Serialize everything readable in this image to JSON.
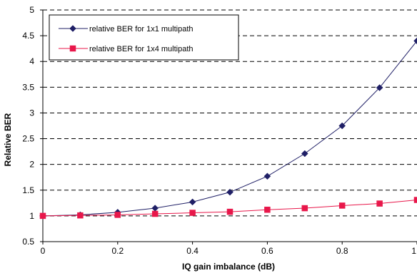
{
  "chart_data": {
    "type": "line",
    "title": "",
    "xlabel": "IQ gain imbalance (dB)",
    "ylabel": "Relative BER",
    "xlim": [
      0,
      1
    ],
    "ylim": [
      0.5,
      5
    ],
    "xticks": [
      0,
      0.2,
      0.4,
      0.6,
      0.8,
      1
    ],
    "xtick_labels": [
      "0",
      "0.2",
      "0.4",
      "0.6",
      "0.8",
      "1"
    ],
    "yticks": [
      0.5,
      1,
      1.5,
      2,
      2.5,
      3,
      3.5,
      4,
      4.5,
      5
    ],
    "ytick_labels": [
      "0.5",
      "1",
      "1.5",
      "2",
      "2.5",
      "3",
      "3.5",
      "4",
      "4.5",
      "5"
    ],
    "grid": "horizontal dashed",
    "legend_position": "top-left",
    "x": [
      0,
      0.1,
      0.2,
      0.3,
      0.4,
      0.5,
      0.6,
      0.7,
      0.8,
      0.9,
      1.0
    ],
    "series": [
      {
        "name": "relative BER for 1x1 multipath",
        "color": "#1f1f66",
        "marker": "diamond",
        "values": [
          1.0,
          1.02,
          1.07,
          1.15,
          1.27,
          1.46,
          1.77,
          2.21,
          2.75,
          3.49,
          4.4
        ]
      },
      {
        "name": "relative BER for 1x4 multipath",
        "color": "#e8174a",
        "marker": "square",
        "values": [
          1.0,
          1.01,
          1.02,
          1.04,
          1.06,
          1.08,
          1.12,
          1.15,
          1.2,
          1.24,
          1.31
        ]
      }
    ]
  }
}
